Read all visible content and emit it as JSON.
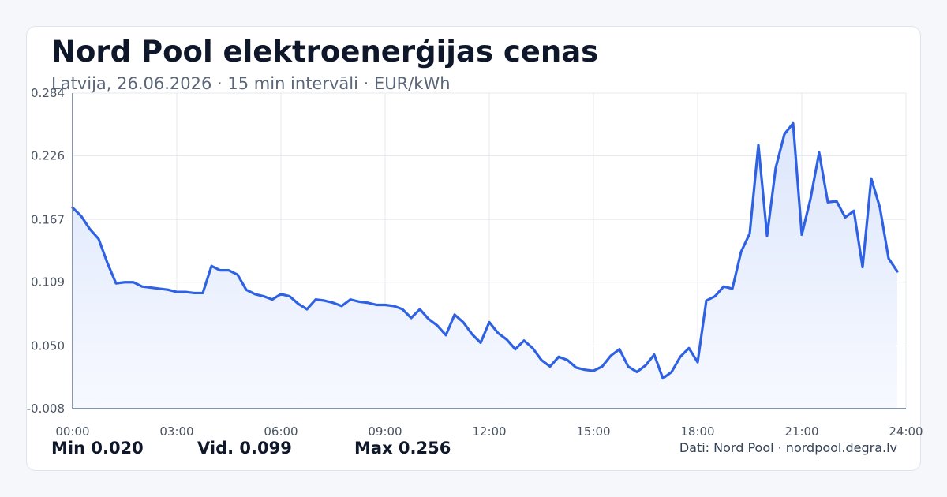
{
  "header": {
    "title": "Nord Pool elektroenerģijas cenas",
    "subtitle": "Latvija, 26.06.2026 · 15 min intervāli · EUR/kWh"
  },
  "stats": {
    "min": "Min 0.020",
    "avg": "Vid. 0.099",
    "max": "Max 0.256"
  },
  "footer": {
    "source": "Dati: Nord Pool · nordpool.degra.lv"
  },
  "colors": {
    "line": "#2f62e3",
    "area_top": "#dce6fb",
    "area_bottom": "#f7f9ff",
    "grid": "#e5e8ee",
    "axis": "#64748b"
  },
  "chart_data": {
    "type": "area",
    "x_unit": "hours",
    "ylim": [
      -0.008,
      0.284
    ],
    "xlim": [
      0,
      24
    ],
    "yticks": [
      "0.284",
      "0.226",
      "0.167",
      "0.109",
      "0.050",
      "-0.008"
    ],
    "ytick_values": [
      0.284,
      0.226,
      0.167,
      0.109,
      0.05,
      -0.008
    ],
    "xticks": [
      "00:00",
      "03:00",
      "06:00",
      "09:00",
      "12:00",
      "15:00",
      "18:00",
      "21:00",
      "24:00"
    ],
    "xtick_values": [
      0,
      3,
      6,
      9,
      12,
      15,
      18,
      21,
      24
    ],
    "grid": true,
    "series": [
      {
        "x": [
          0,
          0.25,
          0.5,
          0.75,
          1,
          1.25,
          1.5,
          1.75,
          2,
          2.25,
          2.5,
          2.75,
          3,
          3.25,
          3.5,
          3.75,
          4,
          4.25,
          4.5,
          4.75,
          5,
          5.25,
          5.5,
          5.75,
          6,
          6.25,
          6.5,
          6.75,
          7,
          7.25,
          7.5,
          7.75,
          8,
          8.25,
          8.5,
          8.75,
          9,
          9.25,
          9.5,
          9.75,
          10,
          10.25,
          10.5,
          10.75,
          11,
          11.25,
          11.5,
          11.75,
          12,
          12.25,
          12.5,
          12.75,
          13,
          13.25,
          13.5,
          13.75,
          14,
          14.25,
          14.5,
          14.75,
          15,
          15.25,
          15.5,
          15.75,
          16,
          16.25,
          16.5,
          16.75,
          17,
          17.25,
          17.5,
          17.75,
          18,
          18.25,
          18.5,
          18.75,
          19,
          19.25,
          19.5,
          19.75,
          20,
          20.25,
          20.5,
          20.75,
          21,
          21.25,
          21.5,
          21.75,
          22,
          22.25,
          22.5,
          22.75,
          23,
          23.25,
          23.5,
          23.75
        ],
        "values": [
          0.178,
          0.17,
          0.158,
          0.149,
          0.127,
          0.108,
          0.109,
          0.109,
          0.105,
          0.104,
          0.103,
          0.102,
          0.1,
          0.1,
          0.099,
          0.099,
          0.124,
          0.12,
          0.12,
          0.116,
          0.102,
          0.098,
          0.096,
          0.093,
          0.098,
          0.096,
          0.089,
          0.084,
          0.093,
          0.092,
          0.09,
          0.087,
          0.093,
          0.091,
          0.09,
          0.088,
          0.088,
          0.087,
          0.084,
          0.076,
          0.084,
          0.075,
          0.069,
          0.06,
          0.079,
          0.072,
          0.061,
          0.053,
          0.072,
          0.062,
          0.056,
          0.047,
          0.055,
          0.048,
          0.037,
          0.031,
          0.04,
          0.037,
          0.03,
          0.028,
          0.027,
          0.031,
          0.041,
          0.047,
          0.031,
          0.026,
          0.032,
          0.042,
          0.02,
          0.026,
          0.04,
          0.048,
          0.035,
          0.092,
          0.096,
          0.105,
          0.103,
          0.137,
          0.154,
          0.236,
          0.152,
          0.215,
          0.246,
          0.256,
          0.153,
          0.186,
          0.229,
          0.183,
          0.184,
          0.169,
          0.175,
          0.123,
          0.205,
          0.178,
          0.131,
          0.119
        ]
      }
    ]
  }
}
